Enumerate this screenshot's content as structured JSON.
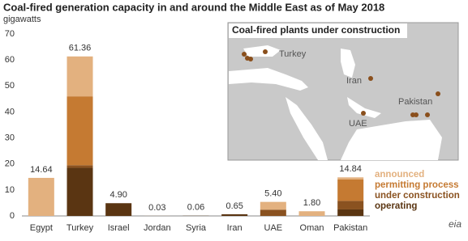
{
  "chart_data": {
    "type": "stacked_bar",
    "title": "Coal-fired generation capacity in and around the Middle East as of May 2018",
    "subtitle": "gigawatts",
    "categories": [
      "Egypt",
      "Turkey",
      "Israel",
      "Jordan",
      "Syria",
      "Iran",
      "UAE",
      "Oman",
      "Pakistan"
    ],
    "series": [
      {
        "name": "announced",
        "color": "#e3b17f",
        "values": [
          14.64,
          15.36,
          0,
          0.03,
          0,
          0,
          3.0,
          1.8,
          0.84
        ]
      },
      {
        "name": "permitting process",
        "color": "#c57a32",
        "values": [
          0,
          26.5,
          0,
          0,
          0,
          0,
          0,
          0,
          8.2
        ]
      },
      {
        "name": "under construction",
        "color": "#8a5220",
        "values": [
          0,
          1.0,
          0,
          0,
          0,
          0,
          2.4,
          0,
          3.3
        ]
      },
      {
        "name": "operating",
        "color": "#5a3512",
        "values": [
          0,
          18.5,
          4.9,
          0,
          0.06,
          0.65,
          0,
          0,
          2.5
        ]
      }
    ],
    "totals": [
      14.64,
      61.36,
      4.9,
      0.03,
      0.06,
      0.65,
      5.4,
      1.8,
      14.84
    ],
    "total_labels": [
      "14.64",
      "61.36",
      "4.90",
      "0.03",
      "0.06",
      "0.65",
      "5.40",
      "1.80",
      "14.84"
    ],
    "ylim": [
      0,
      70
    ],
    "yticks": [
      0,
      10,
      20,
      30,
      40,
      50,
      60,
      70
    ],
    "grid": false
  },
  "map": {
    "title": "Coal-fired plants under construction",
    "labels": [
      "Turkey",
      "Iran",
      "Pakistan",
      "UAE"
    ]
  }
}
